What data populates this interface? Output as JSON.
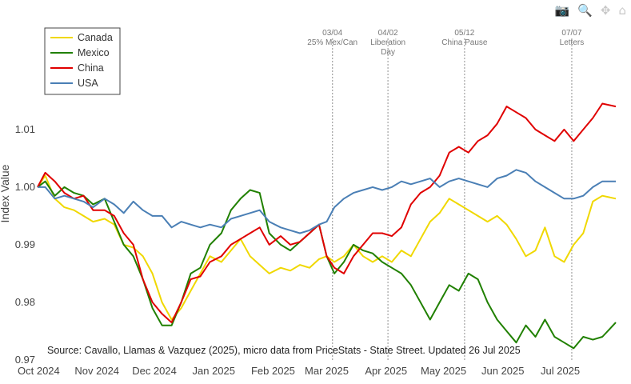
{
  "modebar": {
    "camera_icon": "camera-icon",
    "zoom_icon": "zoom-icon",
    "pan_icon": "pan-icon",
    "home_icon": "home-icon"
  },
  "chart_data": {
    "type": "line",
    "ylabel": "Index Value",
    "xlabel": "",
    "x_tick_labels": [
      "Oct 2024",
      "Nov 2024",
      "Dec 2024",
      "Jan 2025",
      "Feb 2025",
      "Mar 2025",
      "Apr 2025",
      "May 2025",
      "Jun 2025",
      "Jul 2025"
    ],
    "y_tick_labels": [
      "0.97",
      "0.98",
      "0.99",
      "1.00",
      "1.01"
    ],
    "x_range": [
      "2024-10-01",
      "2025-07-30"
    ],
    "ylim": [
      0.9697,
      1.0318
    ],
    "y_ticks": [
      0.97,
      0.98,
      0.99,
      1.0,
      1.01
    ],
    "grid": false,
    "legend_position": "top-left",
    "note": "Source: Cavallo, Llamas & Vazquez (2025), micro data from PriceStats - State Street. Updated 26 Jul 2025",
    "annotations": [
      {
        "date": "2025-03-04",
        "lines": [
          "03/04",
          "25% Mex/Can"
        ]
      },
      {
        "date": "2025-04-02",
        "lines": [
          "04/02",
          "Liberation",
          "Day"
        ]
      },
      {
        "date": "2025-05-12",
        "lines": [
          "05/12",
          "China Pause"
        ]
      },
      {
        "date": "2025-07-07",
        "lines": [
          "07/07",
          "Letters"
        ]
      }
    ],
    "series": [
      {
        "name": "Canada",
        "color": "#f0d800",
        "points": [
          [
            "2024-10-01",
            1.0
          ],
          [
            "2024-10-05",
            1.002
          ],
          [
            "2024-10-10",
            0.998
          ],
          [
            "2024-10-15",
            0.9965
          ],
          [
            "2024-10-20",
            0.996
          ],
          [
            "2024-10-25",
            0.995
          ],
          [
            "2024-10-30",
            0.994
          ],
          [
            "2024-11-05",
            0.9945
          ],
          [
            "2024-11-10",
            0.9935
          ],
          [
            "2024-11-15",
            0.99
          ],
          [
            "2024-11-20",
            0.9895
          ],
          [
            "2024-11-25",
            0.988
          ],
          [
            "2024-11-30",
            0.985
          ],
          [
            "2024-12-05",
            0.98
          ],
          [
            "2024-12-10",
            0.977
          ],
          [
            "2024-12-15",
            0.979
          ],
          [
            "2024-12-20",
            0.982
          ],
          [
            "2024-12-25",
            0.985
          ],
          [
            "2024-12-30",
            0.988
          ],
          [
            "2025-01-05",
            0.987
          ],
          [
            "2025-01-10",
            0.989
          ],
          [
            "2025-01-15",
            0.991
          ],
          [
            "2025-01-20",
            0.988
          ],
          [
            "2025-01-25",
            0.9865
          ],
          [
            "2025-01-30",
            0.985
          ],
          [
            "2025-02-05",
            0.986
          ],
          [
            "2025-02-10",
            0.9855
          ],
          [
            "2025-02-15",
            0.9865
          ],
          [
            "2025-02-20",
            0.986
          ],
          [
            "2025-02-25",
            0.9875
          ],
          [
            "2025-03-01",
            0.988
          ],
          [
            "2025-03-05",
            0.987
          ],
          [
            "2025-03-10",
            0.988
          ],
          [
            "2025-03-15",
            0.99
          ],
          [
            "2025-03-20",
            0.988
          ],
          [
            "2025-03-25",
            0.987
          ],
          [
            "2025-03-30",
            0.988
          ],
          [
            "2025-04-04",
            0.987
          ],
          [
            "2025-04-09",
            0.989
          ],
          [
            "2025-04-14",
            0.988
          ],
          [
            "2025-04-19",
            0.991
          ],
          [
            "2025-04-24",
            0.994
          ],
          [
            "2025-04-29",
            0.9955
          ],
          [
            "2025-05-04",
            0.998
          ],
          [
            "2025-05-09",
            0.997
          ],
          [
            "2025-05-14",
            0.996
          ],
          [
            "2025-05-19",
            0.995
          ],
          [
            "2025-05-24",
            0.994
          ],
          [
            "2025-05-29",
            0.995
          ],
          [
            "2025-06-03",
            0.9935
          ],
          [
            "2025-06-08",
            0.991
          ],
          [
            "2025-06-13",
            0.988
          ],
          [
            "2025-06-18",
            0.989
          ],
          [
            "2025-06-23",
            0.993
          ],
          [
            "2025-06-28",
            0.988
          ],
          [
            "2025-07-03",
            0.987
          ],
          [
            "2025-07-08",
            0.99
          ],
          [
            "2025-07-13",
            0.992
          ],
          [
            "2025-07-18",
            0.9975
          ],
          [
            "2025-07-23",
            0.9985
          ],
          [
            "2025-07-30",
            0.998
          ]
        ]
      },
      {
        "name": "Mexico",
        "color": "#208000",
        "points": [
          [
            "2024-10-01",
            1.0
          ],
          [
            "2024-10-05",
            1.001
          ],
          [
            "2024-10-10",
            0.9985
          ],
          [
            "2024-10-15",
            1.0
          ],
          [
            "2024-10-20",
            0.999
          ],
          [
            "2024-10-25",
            0.9985
          ],
          [
            "2024-10-30",
            0.997
          ],
          [
            "2024-11-05",
            0.998
          ],
          [
            "2024-11-10",
            0.994
          ],
          [
            "2024-11-15",
            0.99
          ],
          [
            "2024-11-20",
            0.988
          ],
          [
            "2024-11-25",
            0.984
          ],
          [
            "2024-11-30",
            0.979
          ],
          [
            "2024-12-05",
            0.976
          ],
          [
            "2024-12-10",
            0.976
          ],
          [
            "2024-12-15",
            0.98
          ],
          [
            "2024-12-20",
            0.985
          ],
          [
            "2024-12-25",
            0.986
          ],
          [
            "2024-12-30",
            0.99
          ],
          [
            "2025-01-05",
            0.992
          ],
          [
            "2025-01-10",
            0.996
          ],
          [
            "2025-01-15",
            0.998
          ],
          [
            "2025-01-20",
            0.9995
          ],
          [
            "2025-01-25",
            0.999
          ],
          [
            "2025-01-30",
            0.992
          ],
          [
            "2025-02-05",
            0.99
          ],
          [
            "2025-02-10",
            0.989
          ],
          [
            "2025-02-15",
            0.9905
          ],
          [
            "2025-02-20",
            0.992
          ],
          [
            "2025-02-25",
            0.9935
          ],
          [
            "2025-03-01",
            0.988
          ],
          [
            "2025-03-05",
            0.985
          ],
          [
            "2025-03-10",
            0.987
          ],
          [
            "2025-03-15",
            0.99
          ],
          [
            "2025-03-20",
            0.989
          ],
          [
            "2025-03-25",
            0.9885
          ],
          [
            "2025-03-30",
            0.987
          ],
          [
            "2025-04-04",
            0.986
          ],
          [
            "2025-04-09",
            0.985
          ],
          [
            "2025-04-14",
            0.983
          ],
          [
            "2025-04-19",
            0.98
          ],
          [
            "2025-04-24",
            0.977
          ],
          [
            "2025-04-29",
            0.98
          ],
          [
            "2025-05-04",
            0.983
          ],
          [
            "2025-05-09",
            0.982
          ],
          [
            "2025-05-14",
            0.985
          ],
          [
            "2025-05-19",
            0.984
          ],
          [
            "2025-05-24",
            0.98
          ],
          [
            "2025-05-29",
            0.977
          ],
          [
            "2025-06-03",
            0.975
          ],
          [
            "2025-06-08",
            0.973
          ],
          [
            "2025-06-13",
            0.976
          ],
          [
            "2025-06-18",
            0.974
          ],
          [
            "2025-06-23",
            0.977
          ],
          [
            "2025-06-28",
            0.974
          ],
          [
            "2025-07-03",
            0.973
          ],
          [
            "2025-07-08",
            0.972
          ],
          [
            "2025-07-13",
            0.974
          ],
          [
            "2025-07-18",
            0.9735
          ],
          [
            "2025-07-23",
            0.974
          ],
          [
            "2025-07-30",
            0.9765
          ]
        ]
      },
      {
        "name": "China",
        "color": "#e00000",
        "points": [
          [
            "2024-10-01",
            1.0
          ],
          [
            "2024-10-05",
            1.0025
          ],
          [
            "2024-10-10",
            1.001
          ],
          [
            "2024-10-15",
            0.999
          ],
          [
            "2024-10-20",
            0.998
          ],
          [
            "2024-10-25",
            0.9985
          ],
          [
            "2024-10-30",
            0.996
          ],
          [
            "2024-11-05",
            0.996
          ],
          [
            "2024-11-10",
            0.995
          ],
          [
            "2024-11-15",
            0.992
          ],
          [
            "2024-11-20",
            0.99
          ],
          [
            "2024-11-25",
            0.984
          ],
          [
            "2024-11-30",
            0.98
          ],
          [
            "2024-12-05",
            0.978
          ],
          [
            "2024-12-10",
            0.9765
          ],
          [
            "2024-12-15",
            0.98
          ],
          [
            "2024-12-20",
            0.984
          ],
          [
            "2024-12-25",
            0.9845
          ],
          [
            "2024-12-30",
            0.987
          ],
          [
            "2025-01-05",
            0.988
          ],
          [
            "2025-01-10",
            0.99
          ],
          [
            "2025-01-15",
            0.991
          ],
          [
            "2025-01-20",
            0.992
          ],
          [
            "2025-01-25",
            0.993
          ],
          [
            "2025-01-30",
            0.99
          ],
          [
            "2025-02-05",
            0.9915
          ],
          [
            "2025-02-10",
            0.99
          ],
          [
            "2025-02-15",
            0.9905
          ],
          [
            "2025-02-20",
            0.992
          ],
          [
            "2025-02-25",
            0.9935
          ],
          [
            "2025-03-01",
            0.988
          ],
          [
            "2025-03-05",
            0.986
          ],
          [
            "2025-03-10",
            0.985
          ],
          [
            "2025-03-15",
            0.988
          ],
          [
            "2025-03-20",
            0.99
          ],
          [
            "2025-03-25",
            0.992
          ],
          [
            "2025-03-30",
            0.992
          ],
          [
            "2025-04-04",
            0.9915
          ],
          [
            "2025-04-09",
            0.993
          ],
          [
            "2025-04-14",
            0.997
          ],
          [
            "2025-04-19",
            0.999
          ],
          [
            "2025-04-24",
            1.0
          ],
          [
            "2025-04-29",
            1.002
          ],
          [
            "2025-05-04",
            1.006
          ],
          [
            "2025-05-09",
            1.007
          ],
          [
            "2025-05-14",
            1.006
          ],
          [
            "2025-05-19",
            1.008
          ],
          [
            "2025-05-24",
            1.009
          ],
          [
            "2025-05-29",
            1.011
          ],
          [
            "2025-06-03",
            1.014
          ],
          [
            "2025-06-08",
            1.013
          ],
          [
            "2025-06-13",
            1.012
          ],
          [
            "2025-06-18",
            1.01
          ],
          [
            "2025-06-23",
            1.009
          ],
          [
            "2025-06-28",
            1.008
          ],
          [
            "2025-07-03",
            1.01
          ],
          [
            "2025-07-08",
            1.008
          ],
          [
            "2025-07-13",
            1.01
          ],
          [
            "2025-07-18",
            1.012
          ],
          [
            "2025-07-23",
            1.0145
          ],
          [
            "2025-07-30",
            1.014
          ]
        ]
      },
      {
        "name": "USA",
        "color": "#4a7fb5",
        "points": [
          [
            "2024-10-01",
            1.0
          ],
          [
            "2024-10-05",
            1.0
          ],
          [
            "2024-10-10",
            0.998
          ],
          [
            "2024-10-15",
            0.9985
          ],
          [
            "2024-10-20",
            0.998
          ],
          [
            "2024-10-25",
            0.9975
          ],
          [
            "2024-10-30",
            0.9965
          ],
          [
            "2024-11-05",
            0.998
          ],
          [
            "2024-11-10",
            0.997
          ],
          [
            "2024-11-15",
            0.9955
          ],
          [
            "2024-11-20",
            0.9975
          ],
          [
            "2024-11-25",
            0.996
          ],
          [
            "2024-11-30",
            0.995
          ],
          [
            "2024-12-05",
            0.995
          ],
          [
            "2024-12-10",
            0.993
          ],
          [
            "2024-12-15",
            0.994
          ],
          [
            "2024-12-20",
            0.9935
          ],
          [
            "2024-12-25",
            0.993
          ],
          [
            "2024-12-30",
            0.9935
          ],
          [
            "2025-01-05",
            0.993
          ],
          [
            "2025-01-10",
            0.9945
          ],
          [
            "2025-01-15",
            0.995
          ],
          [
            "2025-01-20",
            0.9955
          ],
          [
            "2025-01-25",
            0.996
          ],
          [
            "2025-01-30",
            0.994
          ],
          [
            "2025-02-05",
            0.993
          ],
          [
            "2025-02-10",
            0.9925
          ],
          [
            "2025-02-15",
            0.992
          ],
          [
            "2025-02-20",
            0.9925
          ],
          [
            "2025-02-25",
            0.9935
          ],
          [
            "2025-03-01",
            0.994
          ],
          [
            "2025-03-05",
            0.9965
          ],
          [
            "2025-03-10",
            0.998
          ],
          [
            "2025-03-15",
            0.999
          ],
          [
            "2025-03-20",
            0.9995
          ],
          [
            "2025-03-25",
            1.0
          ],
          [
            "2025-03-30",
            0.9995
          ],
          [
            "2025-04-04",
            1.0
          ],
          [
            "2025-04-09",
            1.001
          ],
          [
            "2025-04-14",
            1.0005
          ],
          [
            "2025-04-19",
            1.001
          ],
          [
            "2025-04-24",
            1.0015
          ],
          [
            "2025-04-29",
            1.0
          ],
          [
            "2025-05-04",
            1.001
          ],
          [
            "2025-05-09",
            1.0015
          ],
          [
            "2025-05-14",
            1.001
          ],
          [
            "2025-05-19",
            1.0005
          ],
          [
            "2025-05-24",
            1.0
          ],
          [
            "2025-05-29",
            1.0015
          ],
          [
            "2025-06-03",
            1.002
          ],
          [
            "2025-06-08",
            1.003
          ],
          [
            "2025-06-13",
            1.0025
          ],
          [
            "2025-06-18",
            1.001
          ],
          [
            "2025-06-23",
            1.0
          ],
          [
            "2025-06-28",
            0.999
          ],
          [
            "2025-07-03",
            0.998
          ],
          [
            "2025-07-08",
            0.998
          ],
          [
            "2025-07-13",
            0.9985
          ],
          [
            "2025-07-18",
            1.0
          ],
          [
            "2025-07-23",
            1.001
          ],
          [
            "2025-07-30",
            1.001
          ]
        ]
      }
    ]
  }
}
